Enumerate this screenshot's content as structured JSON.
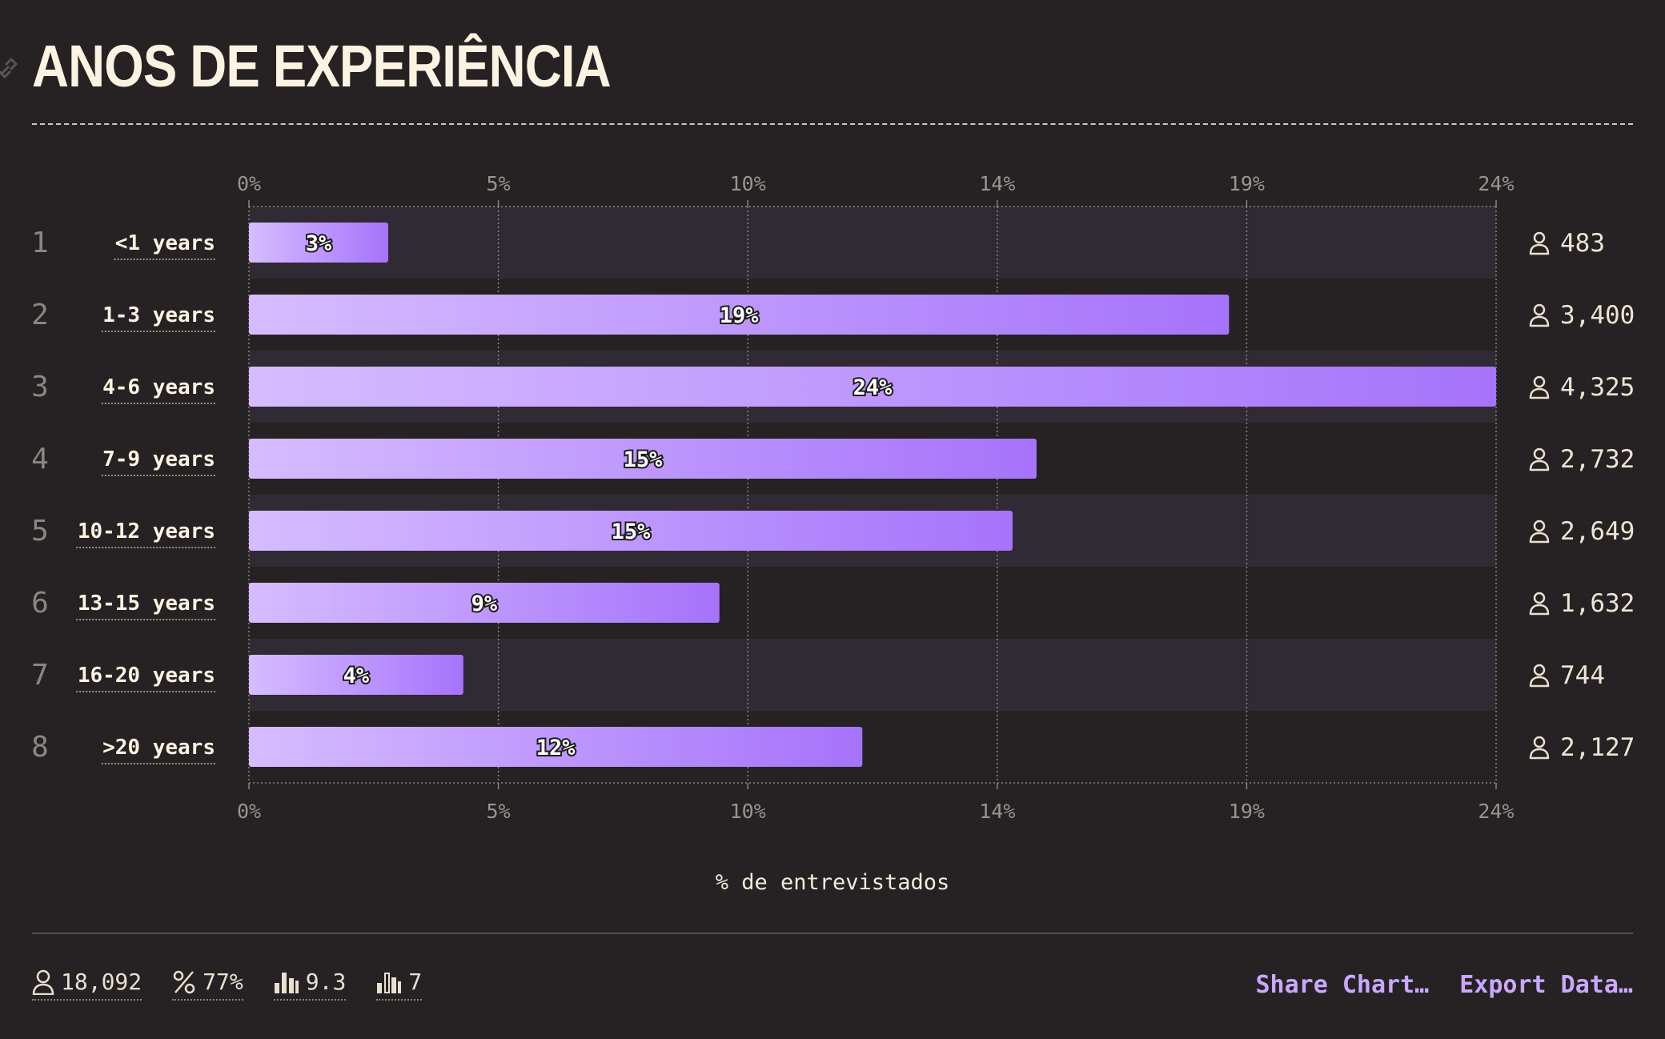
{
  "title": "ANOS DE EXPERIÊNCIA",
  "chart_data": {
    "type": "bar",
    "orientation": "horizontal",
    "categories": [
      "<1 years",
      "1-3 years",
      "4-6 years",
      "7-9 years",
      "10-12 years",
      "13-15 years",
      "16-20 years",
      ">20 years"
    ],
    "ranks": [
      "1",
      "2",
      "3",
      "4",
      "5",
      "6",
      "7",
      "8"
    ],
    "values": [
      2.67,
      18.79,
      23.91,
      15.1,
      14.64,
      9.02,
      4.11,
      11.76
    ],
    "value_labels": [
      "3%",
      "19%",
      "24%",
      "15%",
      "15%",
      "9%",
      "4%",
      "12%"
    ],
    "counts": [
      "483",
      "3,400",
      "4,325",
      "2,732",
      "2,649",
      "1,632",
      "744",
      "2,127"
    ],
    "x_ticks": [
      "0%",
      "5%",
      "10%",
      "14%",
      "19%",
      "24%"
    ],
    "xlim": [
      0,
      23.91
    ],
    "xlabel": "% de entrevistados",
    "grid": true,
    "colors": {
      "bar_start": "#d6bcff",
      "bar_end": "#a673fb",
      "band": "#302a34"
    }
  },
  "footer": {
    "stats": [
      {
        "icon": "person-icon",
        "value": "18,092"
      },
      {
        "icon": "percent-icon",
        "value": "77%"
      },
      {
        "icon": "bar-chart-icon",
        "value": "9.3"
      },
      {
        "icon": "bar-chart-outline-icon",
        "value": "7"
      }
    ],
    "share_label": "Share Chart…",
    "export_label": "Export Data…"
  }
}
